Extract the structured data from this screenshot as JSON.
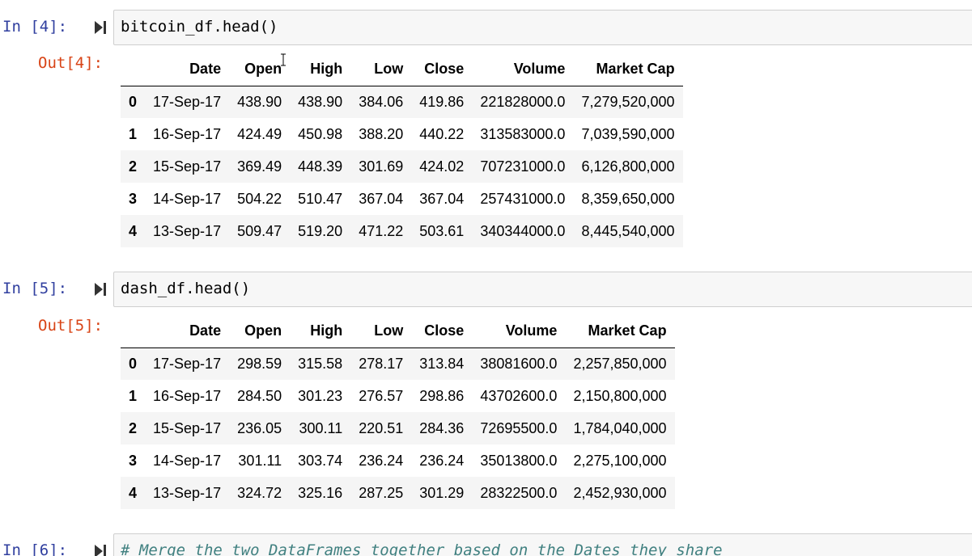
{
  "cells": [
    {
      "in_prompt": "In [4]:",
      "code": "bitcoin_df.head()",
      "out_prompt": "Out[4]:",
      "table": {
        "columns": [
          "Date",
          "Open",
          "High",
          "Low",
          "Close",
          "Volume",
          "Market Cap"
        ],
        "rows": [
          {
            "index": "0",
            "values": [
              "17-Sep-17",
              "438.90",
              "438.90",
              "384.06",
              "419.86",
              "221828000.0",
              "7,279,520,000"
            ]
          },
          {
            "index": "1",
            "values": [
              "16-Sep-17",
              "424.49",
              "450.98",
              "388.20",
              "440.22",
              "313583000.0",
              "7,039,590,000"
            ]
          },
          {
            "index": "2",
            "values": [
              "15-Sep-17",
              "369.49",
              "448.39",
              "301.69",
              "424.02",
              "707231000.0",
              "6,126,800,000"
            ]
          },
          {
            "index": "3",
            "values": [
              "14-Sep-17",
              "504.22",
              "510.47",
              "367.04",
              "367.04",
              "257431000.0",
              "8,359,650,000"
            ]
          },
          {
            "index": "4",
            "values": [
              "13-Sep-17",
              "509.47",
              "519.20",
              "471.22",
              "503.61",
              "340344000.0",
              "8,445,540,000"
            ]
          }
        ]
      }
    },
    {
      "in_prompt": "In [5]:",
      "code": "dash_df.head()",
      "out_prompt": "Out[5]:",
      "table": {
        "columns": [
          "Date",
          "Open",
          "High",
          "Low",
          "Close",
          "Volume",
          "Market Cap"
        ],
        "rows": [
          {
            "index": "0",
            "values": [
              "17-Sep-17",
              "298.59",
              "315.58",
              "278.17",
              "313.84",
              "38081600.0",
              "2,257,850,000"
            ]
          },
          {
            "index": "1",
            "values": [
              "16-Sep-17",
              "284.50",
              "301.23",
              "276.57",
              "298.86",
              "43702600.0",
              "2,150,800,000"
            ]
          },
          {
            "index": "2",
            "values": [
              "15-Sep-17",
              "236.05",
              "300.11",
              "220.51",
              "284.36",
              "72695500.0",
              "1,784,040,000"
            ]
          },
          {
            "index": "3",
            "values": [
              "14-Sep-17",
              "301.11",
              "303.74",
              "236.24",
              "236.24",
              "35013800.0",
              "2,275,100,000"
            ]
          },
          {
            "index": "4",
            "values": [
              "13-Sep-17",
              "324.72",
              "325.16",
              "287.25",
              "301.29",
              "28322500.0",
              "2,452,930,000"
            ]
          }
        ]
      }
    },
    {
      "in_prompt": "In [6]:",
      "code": "# Merge the two DataFrames together based on the Dates they share"
    }
  ],
  "icons": {
    "run": "run-cell-icon",
    "cursor": "text-cursor-icon"
  },
  "colors": {
    "in_prompt": "#303f9f",
    "out_prompt": "#d84315",
    "comment": "#408080",
    "cell_bg": "#f7f7f7",
    "cell_border": "#cfcfcf",
    "row_stripe": "#f5f5f5"
  }
}
